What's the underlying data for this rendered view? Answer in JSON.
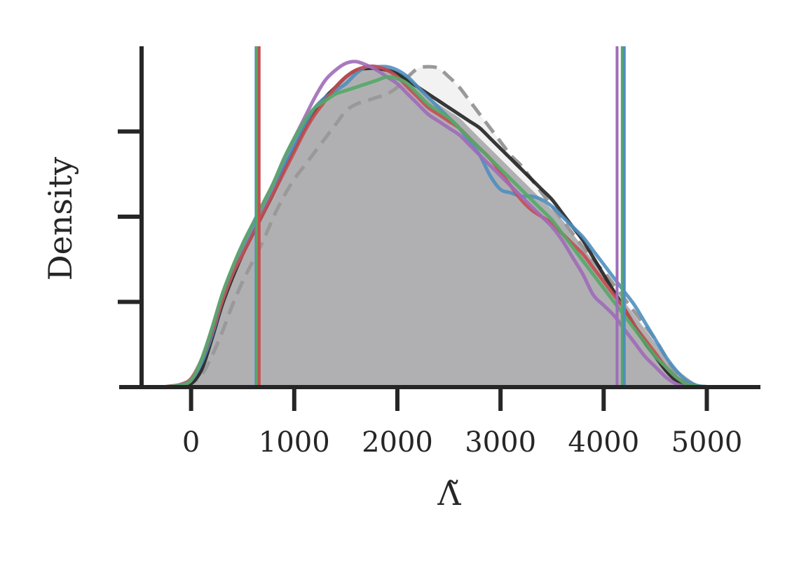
{
  "chart_data": {
    "type": "area",
    "xlabel": "Λ̃",
    "ylabel": "Density",
    "xlim": [
      -480,
      5520
    ],
    "ylim": [
      0,
      1.0
    ],
    "grid": false,
    "legend": "none",
    "x_ticks": [
      0,
      1000,
      2000,
      3000,
      4000,
      5000
    ],
    "x_tick_labels": [
      "0",
      "1000",
      "2000",
      "3000",
      "4000",
      "5000"
    ],
    "y_ticks": [
      0.25,
      0.5,
      0.75
    ],
    "y_tick_labels": [
      "",
      "",
      ""
    ],
    "x": [
      -480,
      -300,
      -200,
      -100,
      0,
      100,
      200,
      300,
      400,
      500,
      600,
      700,
      800,
      900,
      1000,
      1100,
      1200,
      1300,
      1400,
      1500,
      1600,
      1700,
      1800,
      1900,
      2000,
      2100,
      2200,
      2300,
      2400,
      2500,
      2600,
      2700,
      2800,
      2900,
      3000,
      3100,
      3200,
      3300,
      3400,
      3500,
      3600,
      3700,
      3800,
      3900,
      4000,
      4100,
      4200,
      4300,
      4400,
      4500,
      4600,
      4700,
      4800,
      4900,
      5000,
      5100,
      5200,
      5300,
      5480
    ],
    "filled_density": [
      0,
      0,
      0.002,
      0.005,
      0.02,
      0.07,
      0.15,
      0.25,
      0.33,
      0.4,
      0.46,
      0.52,
      0.58,
      0.65,
      0.71,
      0.76,
      0.81,
      0.85,
      0.88,
      0.91,
      0.93,
      0.935,
      0.935,
      0.935,
      0.925,
      0.91,
      0.88,
      0.85,
      0.83,
      0.81,
      0.79,
      0.76,
      0.73,
      0.7,
      0.67,
      0.64,
      0.61,
      0.58,
      0.55,
      0.52,
      0.49,
      0.45,
      0.41,
      0.37,
      0.33,
      0.29,
      0.25,
      0.21,
      0.17,
      0.13,
      0.09,
      0.055,
      0.03,
      0.01,
      0.003,
      0.001,
      0,
      0,
      0
    ],
    "series": [
      {
        "style": "dashed",
        "color": "#999999",
        "fill": "#f2f2f2",
        "values": [
          0,
          0,
          0.001,
          0.004,
          0.01,
          0.035,
          0.09,
          0.16,
          0.24,
          0.31,
          0.37,
          0.43,
          0.5,
          0.56,
          0.61,
          0.65,
          0.69,
          0.73,
          0.77,
          0.81,
          0.83,
          0.84,
          0.85,
          0.86,
          0.88,
          0.91,
          0.935,
          0.94,
          0.935,
          0.91,
          0.88,
          0.84,
          0.8,
          0.76,
          0.72,
          0.68,
          0.65,
          0.61,
          0.57,
          0.53,
          0.49,
          0.45,
          0.41,
          0.37,
          0.34,
          0.3,
          0.26,
          0.22,
          0.18,
          0.14,
          0.09,
          0.04,
          0.02,
          0.005,
          0.001,
          0,
          0,
          0,
          0
        ]
      },
      {
        "style": "solid",
        "color": "#222222",
        "values": [
          0,
          0,
          0.001,
          0.003,
          0.01,
          0.05,
          0.14,
          0.24,
          0.32,
          0.39,
          0.45,
          0.51,
          0.57,
          0.64,
          0.7,
          0.76,
          0.81,
          0.85,
          0.88,
          0.91,
          0.93,
          0.935,
          0.935,
          0.93,
          0.92,
          0.9,
          0.88,
          0.86,
          0.84,
          0.82,
          0.8,
          0.78,
          0.76,
          0.73,
          0.7,
          0.67,
          0.64,
          0.61,
          0.58,
          0.55,
          0.51,
          0.47,
          0.43,
          0.38,
          0.33,
          0.28,
          0.23,
          0.18,
          0.13,
          0.09,
          0.05,
          0.02,
          0.005,
          0.001,
          0,
          0,
          0,
          0,
          0
        ]
      },
      {
        "style": "solid",
        "color": "#4f8fc0",
        "values": [
          0,
          0,
          0.002,
          0.006,
          0.02,
          0.07,
          0.15,
          0.25,
          0.33,
          0.4,
          0.46,
          0.52,
          0.58,
          0.65,
          0.71,
          0.77,
          0.82,
          0.85,
          0.87,
          0.89,
          0.92,
          0.94,
          0.94,
          0.94,
          0.93,
          0.91,
          0.88,
          0.85,
          0.82,
          0.79,
          0.76,
          0.72,
          0.68,
          0.62,
          0.58,
          0.57,
          0.56,
          0.56,
          0.55,
          0.53,
          0.5,
          0.47,
          0.44,
          0.4,
          0.36,
          0.32,
          0.28,
          0.24,
          0.19,
          0.14,
          0.09,
          0.05,
          0.02,
          0.005,
          0.001,
          0,
          0,
          0,
          0
        ]
      },
      {
        "style": "solid",
        "color": "#c44e52",
        "values": [
          0,
          0,
          0.003,
          0.008,
          0.025,
          0.08,
          0.16,
          0.25,
          0.33,
          0.39,
          0.45,
          0.51,
          0.57,
          0.63,
          0.69,
          0.75,
          0.8,
          0.84,
          0.88,
          0.91,
          0.93,
          0.94,
          0.94,
          0.93,
          0.91,
          0.88,
          0.85,
          0.82,
          0.8,
          0.78,
          0.76,
          0.73,
          0.7,
          0.67,
          0.63,
          0.59,
          0.55,
          0.52,
          0.5,
          0.48,
          0.45,
          0.42,
          0.39,
          0.35,
          0.31,
          0.27,
          0.23,
          0.18,
          0.14,
          0.1,
          0.06,
          0.03,
          0.01,
          0.002,
          0,
          0,
          0,
          0,
          0
        ]
      },
      {
        "style": "solid",
        "color": "#a06cb8",
        "values": [
          0,
          0,
          0.002,
          0.007,
          0.02,
          0.08,
          0.17,
          0.27,
          0.35,
          0.42,
          0.48,
          0.54,
          0.6,
          0.67,
          0.73,
          0.79,
          0.85,
          0.9,
          0.93,
          0.95,
          0.955,
          0.945,
          0.93,
          0.91,
          0.89,
          0.86,
          0.83,
          0.8,
          0.78,
          0.76,
          0.74,
          0.71,
          0.68,
          0.65,
          0.62,
          0.59,
          0.56,
          0.53,
          0.5,
          0.47,
          0.43,
          0.38,
          0.33,
          0.27,
          0.24,
          0.21,
          0.17,
          0.13,
          0.09,
          0.06,
          0.03,
          0.01,
          0.002,
          0,
          0,
          0,
          0,
          0,
          0
        ]
      },
      {
        "style": "solid",
        "color": "#55a868",
        "values": [
          0,
          0,
          0.002,
          0.006,
          0.02,
          0.08,
          0.17,
          0.27,
          0.35,
          0.42,
          0.48,
          0.54,
          0.6,
          0.67,
          0.73,
          0.78,
          0.82,
          0.84,
          0.86,
          0.87,
          0.88,
          0.89,
          0.9,
          0.91,
          0.905,
          0.89,
          0.86,
          0.83,
          0.81,
          0.79,
          0.76,
          0.73,
          0.7,
          0.67,
          0.64,
          0.61,
          0.58,
          0.55,
          0.52,
          0.49,
          0.45,
          0.41,
          0.37,
          0.33,
          0.29,
          0.25,
          0.21,
          0.17,
          0.13,
          0.09,
          0.06,
          0.03,
          0.01,
          0.003,
          0.001,
          0,
          0,
          0,
          0
        ]
      }
    ],
    "vertical_lines": [
      {
        "x": 630,
        "color": "#4f8fc0"
      },
      {
        "x": 640,
        "color": "#55a868"
      },
      {
        "x": 660,
        "color": "#c44e52"
      },
      {
        "x": 4130,
        "color": "#a06cb8"
      },
      {
        "x": 4180,
        "color": "#55a868"
      },
      {
        "x": 4200,
        "color": "#4f8fc0"
      }
    ]
  }
}
